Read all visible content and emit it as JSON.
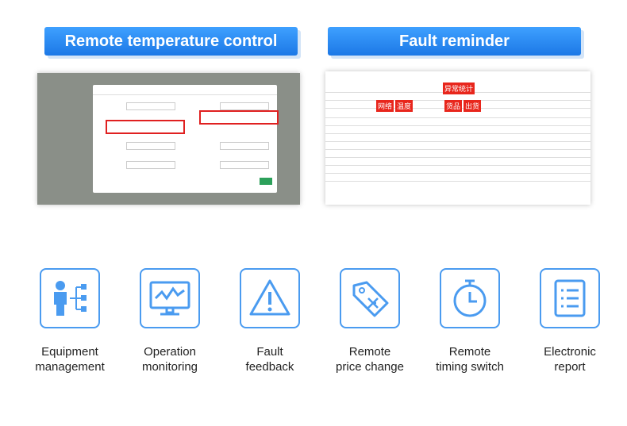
{
  "banners": [
    {
      "title": "Remote temperature control"
    },
    {
      "title": "Fault reminder",
      "tags": [
        "异常统计",
        "网络",
        "温度",
        "货品",
        "出货"
      ]
    }
  ],
  "features": [
    {
      "label": [
        "Equipment",
        "management"
      ]
    },
    {
      "label": [
        "Operation",
        "monitoring"
      ]
    },
    {
      "label": [
        "Fault",
        "feedback"
      ]
    },
    {
      "label": [
        "Remote",
        "price change"
      ]
    },
    {
      "label": [
        "Remote",
        "timing switch"
      ]
    },
    {
      "label": [
        "Electronic",
        "report"
      ]
    }
  ]
}
